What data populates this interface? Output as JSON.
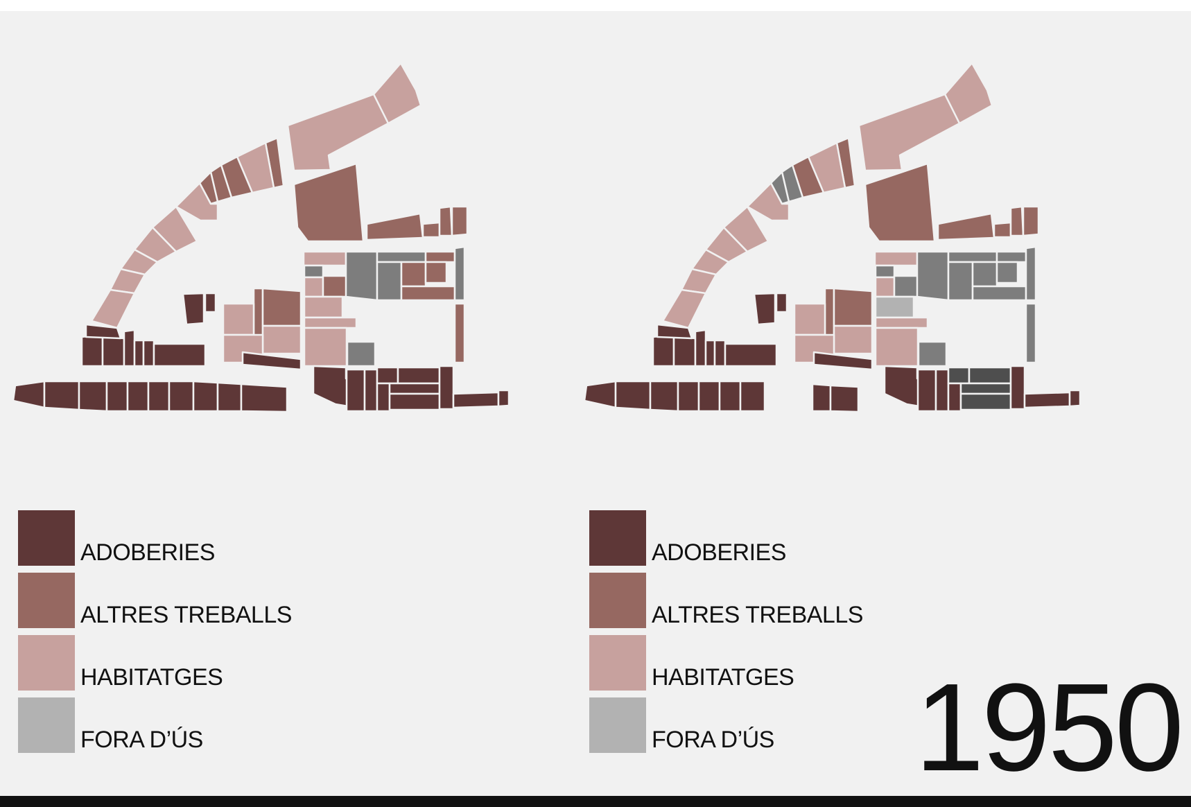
{
  "colors": {
    "adoberies": "#5e3737",
    "altres_treballs": "#966861",
    "habitatges": "#c7a19e",
    "fora_us": "#b2b2b2",
    "fora_us_dark": "#7d7d7d",
    "fora_us_darker": "#4e4e4e",
    "background": "#f1f1f1"
  },
  "legends": [
    {
      "items": [
        {
          "label": "ADOBERIES"
        },
        {
          "label": "ALTRES TREBALLS"
        },
        {
          "label": "HABITATGES"
        },
        {
          "label": "FORA D’ÚS"
        }
      ]
    },
    {
      "items": [
        {
          "label": "ADOBERIES"
        },
        {
          "label": "ALTRES TREBALLS"
        },
        {
          "label": "HABITATGES"
        },
        {
          "label": "FORA D’ÚS"
        }
      ]
    }
  ],
  "year": "1950"
}
